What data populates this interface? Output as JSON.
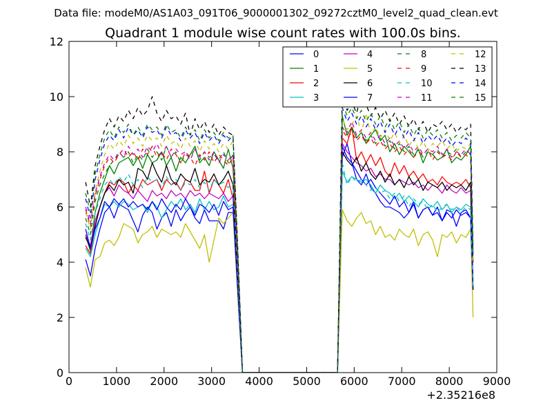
{
  "figure": {
    "suptitle": "Data file: modeM0/AS1A03_091T06_9000001302_09272cztM0_level2_quad_clean.evt",
    "title": "Quadrant 1 module wise count rates with 100.0s bins."
  },
  "chart_data": {
    "type": "line",
    "title": "Quadrant 1 module wise count rates with 100.0s bins.",
    "xlabel": "",
    "ylabel": "",
    "xlim": [
      0,
      9000
    ],
    "ylim": [
      0,
      12
    ],
    "x_offset_label": "+2.35216e8",
    "xticks": [
      0,
      1000,
      2000,
      3000,
      4000,
      5000,
      6000,
      7000,
      8000,
      9000
    ],
    "yticks": [
      0,
      2,
      4,
      6,
      8,
      10,
      12
    ],
    "grid": false,
    "legend": {
      "placement": "top-right",
      "columns": 4
    },
    "x": [
      350,
      450,
      550,
      650,
      750,
      850,
      950,
      1050,
      1150,
      1250,
      1350,
      1450,
      1550,
      1650,
      1750,
      1850,
      1950,
      2050,
      2150,
      2250,
      2350,
      2450,
      2550,
      2650,
      2750,
      2850,
      2950,
      3050,
      3150,
      3250,
      3350,
      3450,
      3550,
      3650,
      5650,
      5750,
      5850,
      5950,
      6050,
      6150,
      6250,
      6350,
      6450,
      6550,
      6650,
      6750,
      6850,
      6950,
      7050,
      7150,
      7250,
      7350,
      7450,
      7550,
      7650,
      7750,
      7850,
      7950,
      8050,
      8150,
      8250,
      8350,
      8450,
      8500
    ],
    "series": [
      {
        "name": "0",
        "color": "#0000ff",
        "dash": "solid",
        "values": [
          4.1,
          3.5,
          4.5,
          5.2,
          5.8,
          6.0,
          5.6,
          6.1,
          6.0,
          5.9,
          5.5,
          5.1,
          5.7,
          6.0,
          5.8,
          5.2,
          5.6,
          5.8,
          5.3,
          5.9,
          5.5,
          5.8,
          6.0,
          5.6,
          5.4,
          5.9,
          5.5,
          5.5,
          5.5,
          5.2,
          5.8,
          5.8,
          3.0,
          0.0,
          0.0,
          7.8,
          8.3,
          7.6,
          7.0,
          6.8,
          7.2,
          6.7,
          6.5,
          6.2,
          6.0,
          6.0,
          5.9,
          5.8,
          5.6,
          5.8,
          6.2,
          5.6,
          5.9,
          6.0,
          5.7,
          5.8,
          5.5,
          5.9,
          5.8,
          5.3,
          5.8,
          5.9,
          5.6,
          3.0
        ]
      },
      {
        "name": "1",
        "color": "#008000",
        "dash": "solid",
        "values": [
          5.0,
          4.4,
          5.8,
          6.5,
          7.0,
          7.5,
          7.2,
          7.6,
          7.7,
          7.8,
          7.5,
          7.8,
          7.4,
          7.9,
          7.6,
          7.7,
          8.0,
          7.5,
          7.8,
          7.3,
          7.8,
          7.6,
          7.9,
          8.2,
          7.6,
          7.8,
          7.5,
          8.0,
          7.7,
          7.4,
          8.1,
          7.4,
          4.0,
          0.0,
          0.0,
          9.3,
          8.6,
          8.9,
          8.5,
          8.7,
          8.3,
          8.6,
          8.8,
          8.4,
          8.6,
          8.0,
          8.3,
          7.9,
          8.2,
          8.0,
          7.8,
          8.1,
          7.6,
          8.0,
          7.9,
          7.7,
          7.8,
          8.1,
          7.6,
          7.8,
          7.7,
          7.9,
          8.2,
          4.0
        ]
      },
      {
        "name": "2",
        "color": "#ff0000",
        "dash": "solid",
        "values": [
          4.6,
          4.3,
          5.3,
          6.0,
          6.5,
          6.9,
          6.8,
          7.0,
          6.9,
          6.5,
          6.8,
          6.6,
          7.0,
          6.8,
          6.9,
          7.0,
          6.6,
          7.0,
          6.8,
          6.9,
          6.6,
          7.0,
          6.9,
          6.6,
          6.6,
          7.3,
          6.5,
          7.0,
          6.8,
          6.5,
          7.0,
          6.3,
          3.5,
          0.0,
          0.0,
          8.5,
          8.3,
          8.9,
          7.7,
          8.0,
          7.6,
          7.9,
          7.5,
          7.8,
          7.3,
          7.1,
          7.6,
          7.2,
          7.5,
          7.1,
          7.3,
          7.0,
          7.2,
          6.9,
          7.0,
          6.8,
          7.1,
          6.9,
          6.8,
          6.9,
          6.8,
          7.0,
          6.7,
          3.0
        ]
      },
      {
        "name": "3",
        "color": "#00bfbf",
        "dash": "solid",
        "values": [
          4.5,
          4.2,
          5.0,
          5.6,
          6.1,
          6.0,
          6.2,
          6.0,
          6.2,
          6.1,
          5.9,
          6.0,
          6.1,
          5.8,
          6.2,
          6.0,
          5.6,
          5.9,
          6.2,
          6.0,
          6.3,
          5.9,
          6.1,
          5.8,
          6.3,
          5.9,
          6.2,
          5.9,
          6.0,
          6.4,
          6.0,
          6.1,
          3.0,
          0.0,
          0.0,
          7.3,
          6.9,
          7.1,
          7.0,
          6.9,
          7.0,
          6.8,
          6.5,
          6.8,
          6.6,
          6.5,
          6.3,
          6.5,
          6.2,
          6.4,
          6.2,
          6.0,
          6.3,
          6.1,
          6.0,
          6.2,
          5.9,
          6.1,
          5.8,
          6.0,
          5.9,
          6.1,
          6.0,
          3.0
        ]
      },
      {
        "name": "4",
        "color": "#bf00bf",
        "dash": "solid",
        "values": [
          5.0,
          4.6,
          5.5,
          6.0,
          6.5,
          6.7,
          6.4,
          6.8,
          6.6,
          6.5,
          6.3,
          6.6,
          6.4,
          6.2,
          6.6,
          6.4,
          6.5,
          6.3,
          6.6,
          6.4,
          6.5,
          6.3,
          6.6,
          6.4,
          6.5,
          6.3,
          6.5,
          6.4,
          6.3,
          6.5,
          6.2,
          6.4,
          3.3,
          0.0,
          0.0,
          8.3,
          8.0,
          7.8,
          7.6,
          7.5,
          7.3,
          7.4,
          7.1,
          7.2,
          7.0,
          7.0,
          6.8,
          7.0,
          6.9,
          6.8,
          6.9,
          6.7,
          6.8,
          6.6,
          6.8,
          6.7,
          6.5,
          6.8,
          6.6,
          6.5,
          6.7,
          6.5,
          6.6,
          3.0
        ]
      },
      {
        "name": "5",
        "color": "#bfbf00",
        "dash": "solid",
        "values": [
          3.8,
          3.1,
          4.1,
          4.2,
          4.7,
          4.8,
          4.6,
          4.9,
          5.4,
          5.3,
          5.2,
          4.7,
          5.0,
          5.1,
          5.3,
          4.9,
          5.2,
          5.1,
          5.0,
          5.1,
          4.9,
          5.4,
          5.1,
          4.8,
          4.5,
          5.0,
          4.0,
          4.8,
          5.6,
          5.4,
          5.6,
          5.8,
          2.7,
          0.0,
          0.0,
          5.9,
          5.5,
          5.3,
          5.6,
          5.8,
          5.4,
          5.5,
          5.0,
          5.3,
          4.9,
          5.0,
          4.8,
          5.2,
          5.0,
          4.9,
          5.2,
          4.6,
          5.0,
          5.1,
          4.8,
          4.2,
          5.0,
          4.9,
          5.1,
          4.7,
          5.0,
          4.9,
          5.2,
          2.0
        ]
      },
      {
        "name": "6",
        "color": "#000000",
        "dash": "solid",
        "values": [
          4.9,
          4.5,
          5.3,
          6.0,
          6.5,
          6.8,
          6.6,
          7.0,
          6.8,
          6.9,
          6.5,
          7.4,
          7.3,
          7.0,
          7.6,
          7.2,
          6.9,
          7.5,
          7.0,
          6.8,
          7.2,
          7.0,
          6.9,
          7.4,
          6.8,
          7.0,
          6.9,
          7.2,
          6.8,
          7.0,
          7.3,
          6.8,
          3.3,
          0.0,
          0.0,
          8.0,
          7.7,
          7.5,
          7.8,
          7.3,
          7.6,
          7.2,
          7.0,
          7.3,
          6.9,
          7.2,
          6.8,
          7.0,
          6.7,
          7.1,
          6.8,
          7.0,
          6.6,
          6.9,
          6.8,
          6.7,
          6.9,
          6.6,
          6.8,
          6.7,
          6.8,
          6.6,
          6.9,
          3.0
        ]
      },
      {
        "name": "7",
        "color": "#0000ff",
        "dash": "solid",
        "values": [
          5.2,
          4.5,
          5.2,
          5.6,
          6.2,
          6.0,
          6.3,
          6.1,
          6.3,
          6.0,
          6.2,
          6.0,
          6.1,
          5.9,
          6.2,
          5.9,
          6.3,
          6.0,
          5.8,
          6.1,
          5.9,
          6.3,
          6.0,
          5.7,
          6.1,
          6.0,
          5.8,
          6.1,
          5.7,
          6.2,
          5.9,
          6.0,
          3.0,
          0.0,
          0.0,
          8.2,
          7.8,
          7.6,
          7.3,
          7.0,
          6.8,
          7.0,
          6.7,
          6.5,
          6.3,
          6.1,
          6.4,
          6.0,
          6.2,
          5.8,
          6.1,
          5.6,
          5.9,
          6.0,
          5.7,
          6.0,
          5.5,
          5.8,
          5.6,
          5.9,
          5.7,
          5.8,
          5.6,
          3.0
        ]
      },
      {
        "name": "8",
        "color": "#008000",
        "dash": "dash",
        "values": [
          5.6,
          5.0,
          6.2,
          6.8,
          7.2,
          7.5,
          7.7,
          7.9,
          7.8,
          8.0,
          7.6,
          7.9,
          7.7,
          8.1,
          7.8,
          8.0,
          7.7,
          8.2,
          7.8,
          8.0,
          7.6,
          7.9,
          7.8,
          8.1,
          7.7,
          8.0,
          7.8,
          7.9,
          7.7,
          8.0,
          7.6,
          7.9,
          4.2,
          0.0,
          0.0,
          8.9,
          8.6,
          8.8,
          8.5,
          8.7,
          8.4,
          8.6,
          8.3,
          8.5,
          8.2,
          8.4,
          8.1,
          8.3,
          8.0,
          8.2,
          7.9,
          8.1,
          7.8,
          8.0,
          7.9,
          8.1,
          7.8,
          8.0,
          7.9,
          8.1,
          7.8,
          8.0,
          7.9,
          4.0
        ]
      },
      {
        "name": "9",
        "color": "#ff0000",
        "dash": "dash",
        "values": [
          5.9,
          5.3,
          6.4,
          7.0,
          7.5,
          7.8,
          7.6,
          7.9,
          8.1,
          7.8,
          8.0,
          7.7,
          8.1,
          7.9,
          8.2,
          7.8,
          8.0,
          7.7,
          8.1,
          7.9,
          7.6,
          8.0,
          7.8,
          7.5,
          7.9,
          7.7,
          8.0,
          7.6,
          7.9,
          7.7,
          7.5,
          7.8,
          4.0,
          0.0,
          0.0,
          8.8,
          8.5,
          8.7,
          8.4,
          8.6,
          8.3,
          8.5,
          8.2,
          8.4,
          8.1,
          8.3,
          8.0,
          8.2,
          7.9,
          8.1,
          7.8,
          8.0,
          7.9,
          8.1,
          7.7,
          8.0,
          7.8,
          7.9,
          7.7,
          8.0,
          7.8,
          7.9,
          7.7,
          4.0
        ]
      },
      {
        "name": "10",
        "color": "#00bfbf",
        "dash": "dash",
        "values": [
          5.4,
          4.8,
          5.8,
          6.3,
          6.8,
          7.0,
          6.8,
          7.1,
          6.9,
          7.2,
          6.8,
          7.0,
          6.7,
          7.1,
          6.9,
          7.0,
          6.7,
          7.1,
          6.8,
          7.0,
          6.6,
          6.9,
          6.8,
          7.0,
          6.7,
          6.9,
          6.6,
          7.0,
          6.8,
          6.9,
          6.7,
          6.9,
          3.5,
          0.0,
          0.0,
          7.6,
          6.8,
          7.1,
          6.9,
          7.0,
          6.8,
          6.6,
          6.7,
          6.5,
          6.6,
          6.3,
          6.5,
          6.2,
          6.4,
          6.0,
          6.3,
          6.1,
          6.2,
          5.9,
          6.1,
          5.8,
          6.0,
          6.1,
          5.9,
          6.0,
          5.8,
          6.0,
          5.9,
          3.0
        ]
      },
      {
        "name": "11",
        "color": "#bf00bf",
        "dash": "dash",
        "values": [
          6.0,
          5.4,
          6.5,
          7.1,
          7.6,
          7.9,
          7.7,
          8.0,
          7.8,
          8.2,
          7.9,
          8.1,
          7.8,
          8.2,
          8.0,
          8.3,
          7.9,
          8.2,
          7.8,
          8.1,
          7.9,
          8.0,
          7.7,
          8.1,
          7.8,
          8.0,
          7.7,
          8.0,
          7.6,
          7.9,
          7.7,
          7.9,
          4.1,
          0.0,
          0.0,
          8.9,
          8.7,
          9.1,
          8.6,
          8.8,
          8.5,
          8.7,
          8.4,
          8.6,
          8.3,
          8.5,
          8.2,
          8.4,
          8.1,
          8.3,
          8.0,
          8.2,
          7.9,
          8.1,
          8.0,
          8.2,
          7.9,
          8.1,
          7.8,
          8.0,
          7.9,
          8.1,
          7.9,
          4.0
        ]
      },
      {
        "name": "12",
        "color": "#bfbf00",
        "dash": "dash",
        "values": [
          5.8,
          5.2,
          6.6,
          7.3,
          7.9,
          8.3,
          8.1,
          8.4,
          8.2,
          8.6,
          8.3,
          8.5,
          8.2,
          8.6,
          8.4,
          8.5,
          8.2,
          8.6,
          8.3,
          8.4,
          8.1,
          8.5,
          8.2,
          8.4,
          8.0,
          8.4,
          8.1,
          8.3,
          8.0,
          8.3,
          8.1,
          8.4,
          4.3,
          0.0,
          0.0,
          9.2,
          8.8,
          9.0,
          9.3,
          8.7,
          9.4,
          8.6,
          8.9,
          8.5,
          8.8,
          8.4,
          8.7,
          8.3,
          8.6,
          8.2,
          8.5,
          8.1,
          8.4,
          8.0,
          8.3,
          8.2,
          8.4,
          8.1,
          8.3,
          8.0,
          8.2,
          8.1,
          8.3,
          4.0
        ]
      },
      {
        "name": "13",
        "color": "#000000",
        "dash": "dash",
        "values": [
          6.9,
          6.0,
          7.5,
          8.2,
          8.8,
          9.2,
          8.9,
          9.3,
          9.1,
          9.5,
          9.2,
          9.6,
          9.3,
          9.5,
          10.0,
          9.4,
          9.1,
          9.5,
          9.2,
          9.3,
          9.0,
          9.4,
          8.6,
          9.2,
          8.8,
          9.1,
          8.7,
          9.0,
          8.6,
          8.9,
          8.7,
          8.6,
          4.5,
          0.0,
          0.0,
          10.2,
          9.5,
          9.8,
          9.4,
          10.1,
          9.7,
          9.3,
          9.6,
          9.2,
          9.5,
          9.1,
          9.4,
          9.0,
          9.3,
          8.9,
          9.2,
          8.8,
          9.1,
          8.7,
          9.0,
          8.9,
          9.1,
          8.8,
          9.0,
          8.7,
          8.9,
          8.8,
          9.0,
          4.5
        ]
      },
      {
        "name": "14",
        "color": "#0000ff",
        "dash": "dash",
        "values": [
          6.3,
          5.6,
          7.0,
          7.7,
          8.3,
          8.6,
          8.4,
          8.8,
          8.5,
          8.9,
          8.6,
          8.8,
          8.5,
          8.9,
          8.7,
          8.8,
          8.5,
          8.9,
          8.6,
          8.7,
          8.4,
          8.8,
          8.5,
          8.7,
          8.3,
          8.7,
          8.4,
          8.6,
          8.3,
          8.6,
          8.4,
          8.6,
          4.4,
          0.0,
          0.0,
          9.6,
          9.1,
          9.4,
          9.0,
          9.3,
          8.9,
          9.2,
          8.8,
          9.1,
          8.7,
          9.0,
          8.6,
          8.9,
          8.5,
          8.8,
          8.4,
          8.7,
          8.3,
          8.6,
          8.4,
          8.6,
          8.3,
          8.5,
          8.2,
          8.4,
          8.3,
          8.5,
          8.3,
          4.2
        ]
      },
      {
        "name": "15",
        "color": "#008000",
        "dash": "dash",
        "values": [
          6.5,
          5.8,
          7.2,
          7.9,
          8.5,
          8.8,
          8.5,
          8.9,
          8.7,
          9.0,
          8.6,
          8.9,
          8.6,
          9.0,
          8.8,
          8.9,
          8.6,
          9.0,
          8.7,
          8.8,
          8.5,
          8.9,
          8.6,
          8.8,
          8.4,
          8.8,
          8.5,
          8.7,
          8.4,
          8.7,
          8.5,
          8.6,
          4.4,
          0.0,
          0.0,
          9.8,
          9.3,
          9.6,
          9.2,
          9.5,
          9.1,
          9.4,
          9.0,
          9.3,
          8.9,
          9.2,
          8.8,
          9.1,
          8.7,
          9.0,
          8.6,
          8.9,
          8.5,
          8.8,
          8.6,
          8.8,
          8.5,
          8.7,
          8.4,
          8.6,
          8.5,
          8.7,
          8.5,
          4.3
        ]
      }
    ]
  }
}
